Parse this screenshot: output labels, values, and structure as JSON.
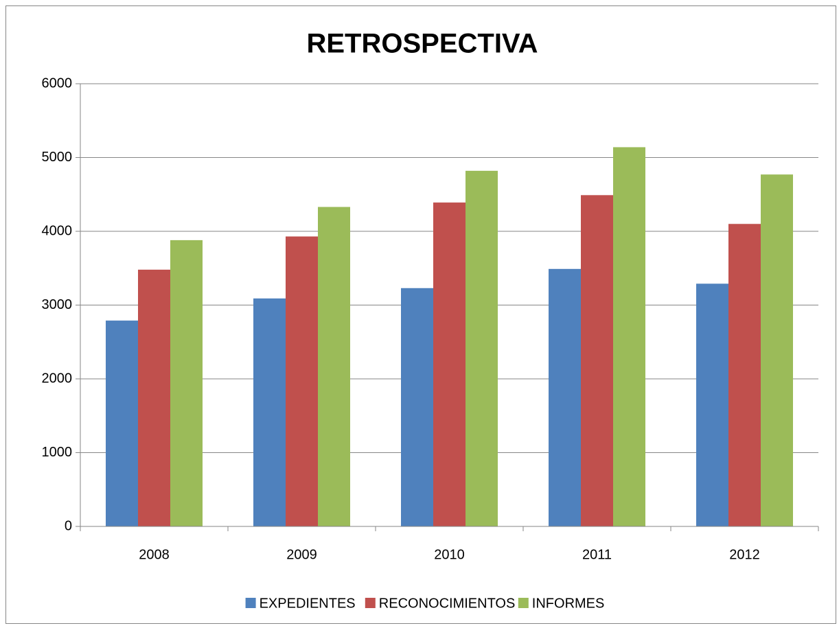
{
  "chart_data": {
    "type": "bar",
    "title": "RETROSPECTIVA",
    "categories": [
      "2008",
      "2009",
      "2010",
      "2011",
      "2012"
    ],
    "series": [
      {
        "name": "EXPEDIENTES",
        "color": "#4f81bd",
        "values": [
          2790,
          3090,
          3230,
          3490,
          3290
        ]
      },
      {
        "name": "RECONOCIMIENTOS",
        "color": "#c0504d",
        "values": [
          3480,
          3930,
          4390,
          4490,
          4100
        ]
      },
      {
        "name": "INFORMES",
        "color": "#9bbb59",
        "values": [
          3880,
          4330,
          4820,
          5140,
          4770
        ]
      }
    ],
    "ylim": [
      0,
      6000
    ],
    "yticks": [
      0,
      1000,
      2000,
      3000,
      4000,
      5000,
      6000
    ],
    "grid": true,
    "legend": "bottom"
  }
}
